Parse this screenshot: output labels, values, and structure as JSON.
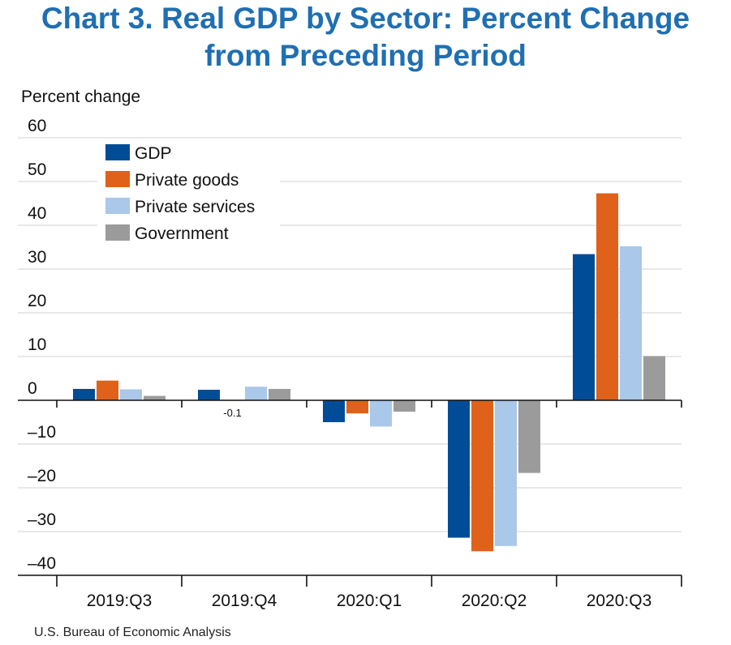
{
  "chart_data": {
    "type": "bar",
    "title": [
      "Chart 3. Real GDP by Sector: Percent Change",
      "from Preceding Period"
    ],
    "ylabel": "Percent change",
    "categories": [
      "2019:Q3",
      "2019:Q4",
      "2020:Q1",
      "2020:Q2",
      "2020:Q3"
    ],
    "series": [
      {
        "name": "GDP",
        "color": "#004c97",
        "values": [
          2.6,
          2.4,
          -5.0,
          -31.4,
          33.4
        ]
      },
      {
        "name": "Private goods",
        "color": "#e0611a",
        "values": [
          4.5,
          -0.1,
          -3.0,
          -34.5,
          47.3
        ]
      },
      {
        "name": "Private services",
        "color": "#a9c8ea",
        "values": [
          2.5,
          3.1,
          -6.0,
          -33.3,
          35.2
        ]
      },
      {
        "name": "Government",
        "color": "#9b9b9b",
        "values": [
          1.0,
          2.6,
          -2.6,
          -16.6,
          10.1
        ]
      }
    ],
    "annotations": [
      {
        "category": "2019:Q4",
        "series": "Private goods",
        "text": "-0.1"
      }
    ],
    "ylim": [
      -40,
      60
    ],
    "yticks": [
      60,
      50,
      40,
      30,
      20,
      10,
      0,
      -10,
      -20,
      -30,
      -40
    ],
    "ytick_labels": [
      "60",
      "50",
      "40",
      "30",
      "20",
      "10",
      "0",
      "–10",
      "–20",
      "–30",
      "–40"
    ],
    "grid": true,
    "legend_position": "top-left"
  },
  "source": "U.S. Bureau of Economic Analysis"
}
